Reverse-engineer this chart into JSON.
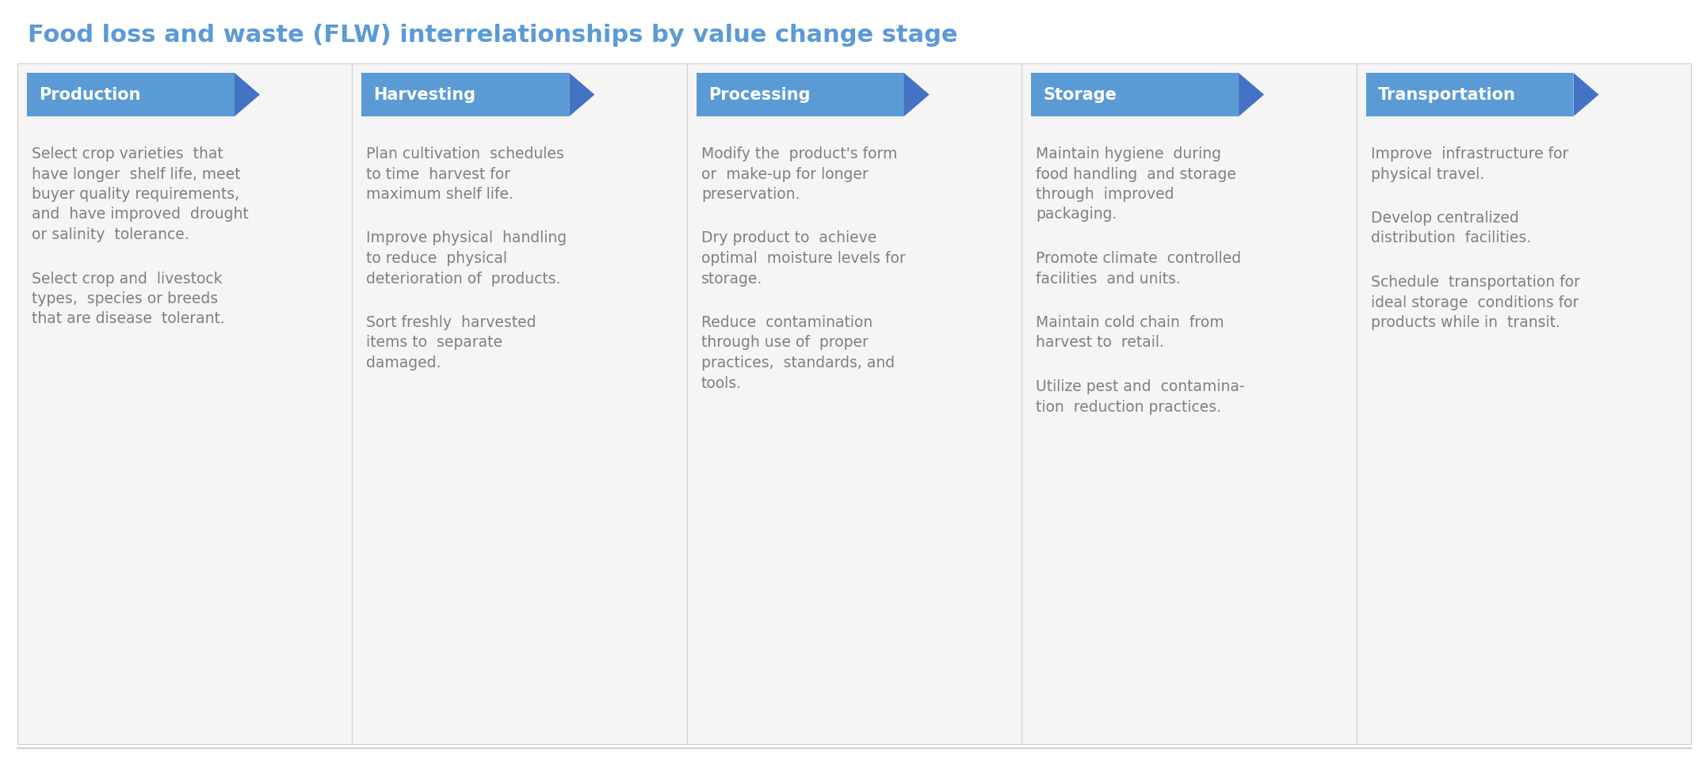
{
  "title": "Food loss and waste (FLW) interrelationships by value change stage",
  "title_color": "#5b9bd5",
  "title_fontsize": 22,
  "background_color": "#ffffff",
  "header_bg_color": "#5b9bd5",
  "header_text_color": "#ffffff",
  "header_fontsize": 15,
  "body_text_color": "#808080",
  "body_fontsize": 13.5,
  "panel_bg_color": "#f5f5f5",
  "arrow_color": "#4472c4",
  "divider_color": "#d0d0d0",
  "columns": [
    {
      "header": "Production",
      "paragraphs": [
        "Select crop varieties  that\nhave longer  shelf life, meet\nbuyer quality requirements,\nand  have improved  drought\nor salinity  tolerance.",
        "Select crop and  livestock\ntypes,  species or breeds\nthat are disease  tolerant."
      ]
    },
    {
      "header": "Harvesting",
      "paragraphs": [
        "Plan cultivation  schedules\nto time  harvest for\nmaximum shelf life.",
        "Improve physical  handling\nto reduce  physical\ndeterioration of  products.",
        "Sort freshly  harvested\nitems to  separate\ndamaged."
      ]
    },
    {
      "header": "Processing",
      "paragraphs": [
        "Modify the  product's form\nor  make-up for longer\npreservation.",
        "Dry product to  achieve\noptimal  moisture levels for\nstorage.",
        "Reduce  contamination\nthrough use of  proper\npractices,  standards, and\ntools."
      ]
    },
    {
      "header": "Storage",
      "paragraphs": [
        "Maintain hygiene  during\nfood handling  and storage\nthrough  improved\npackaging.",
        "Promote climate  controlled\nfacilities  and units.",
        "Maintain cold chain  from\nharvest to  retail.",
        "Utilize pest and  contamina-\ntion  reduction practices."
      ]
    },
    {
      "header": "Transportation",
      "paragraphs": [
        "Improve  infrastructure for\nphysical travel.",
        "Develop centralized\ndistribution  facilities.",
        "Schedule  transportation for\nideal storage  conditions for\nproducts while in  transit."
      ]
    }
  ]
}
